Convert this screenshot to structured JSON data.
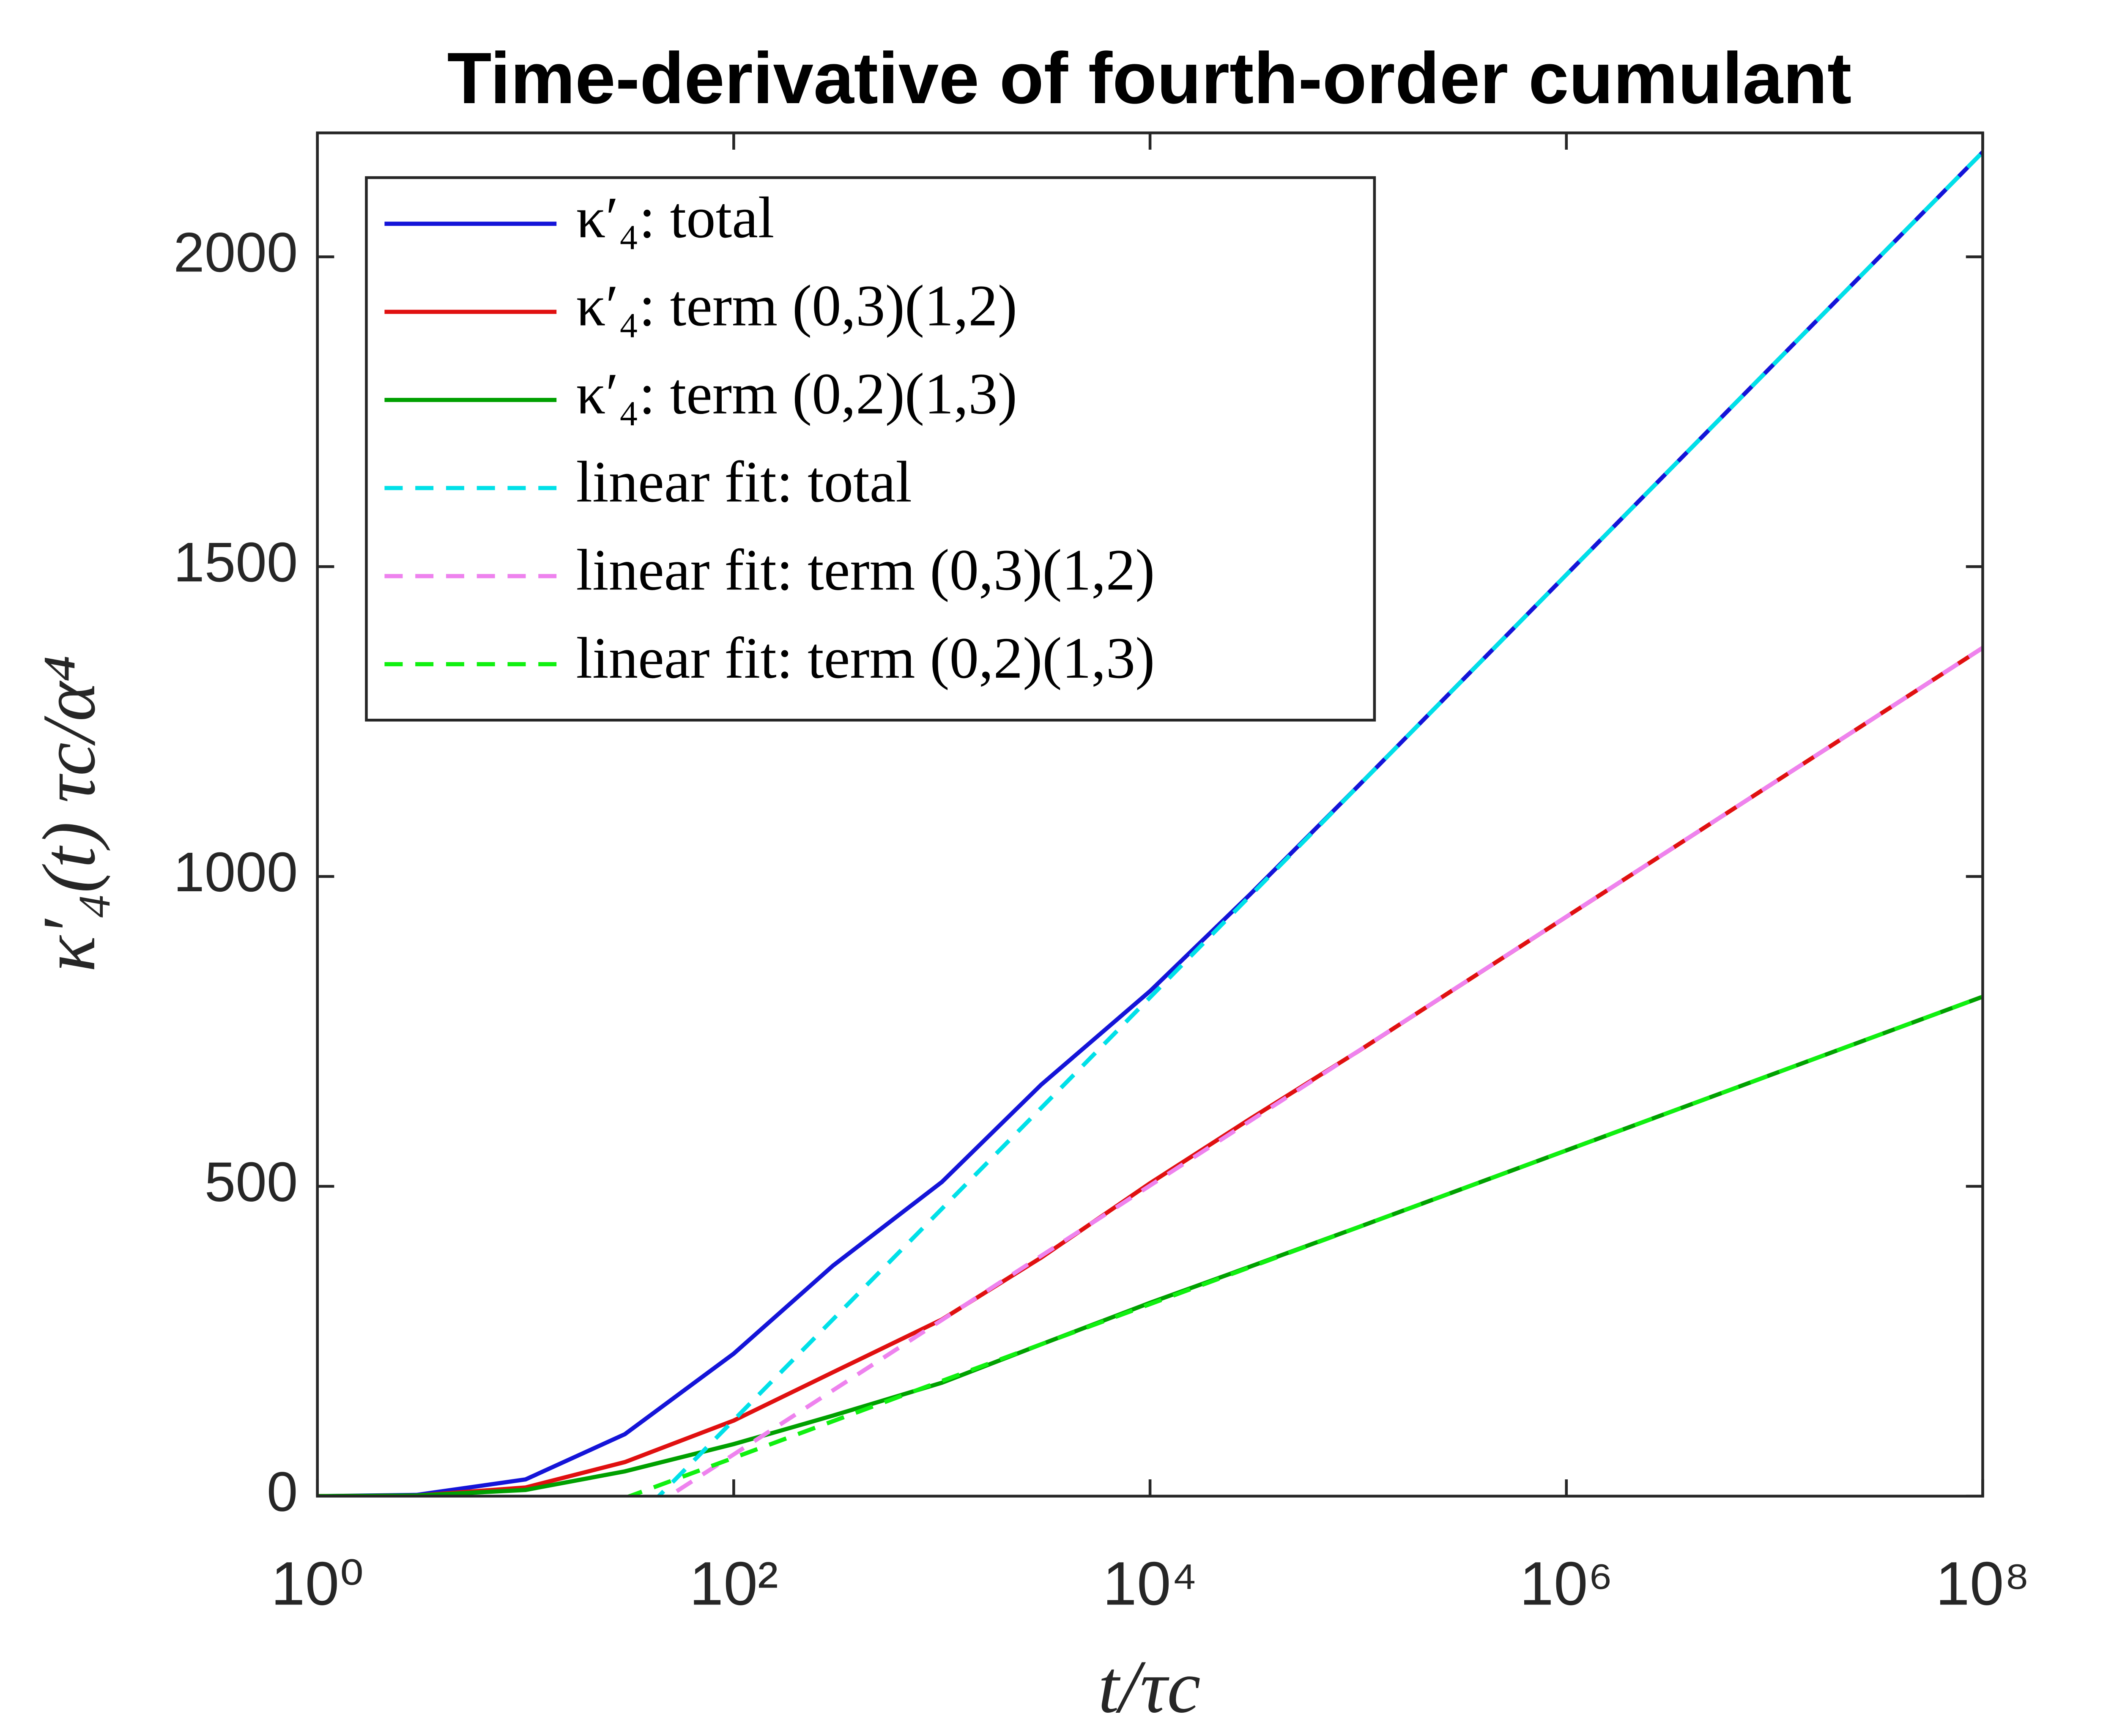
{
  "chart_data": {
    "type": "line",
    "title": "Time-derivative of fourth-order cumulant",
    "xlabel": "t/τc",
    "ylabel": "κ′₄(t) τc/α⁴",
    "xscale": "log",
    "xlim": [
      1,
      100000000
    ],
    "ylim": [
      0,
      2200
    ],
    "xticks": [
      {
        "value": 1,
        "label": "10⁰"
      },
      {
        "value": 100,
        "label": "10²"
      },
      {
        "value": 10000,
        "label": "10⁴"
      },
      {
        "value": 1000000,
        "label": "10⁶"
      },
      {
        "value": 100000000,
        "label": "10⁸"
      }
    ],
    "yticks": [
      0,
      500,
      1000,
      1500,
      2000
    ],
    "legend": "upper left",
    "series": [
      {
        "name": "κ′₄: total",
        "color": "#1414d8",
        "dash": false,
        "x": [
          1,
          3,
          10,
          30,
          100,
          300,
          1000,
          3000,
          10000,
          30000,
          100000,
          1000000,
          10000000,
          100000000
        ],
        "values": [
          0,
          2,
          27,
          100,
          230,
          372,
          507,
          664,
          815,
          970,
          1146,
          1487,
          1828,
          2169
        ]
      },
      {
        "name": "κ′₄: term (0,3)(1,2)",
        "color": "#e01010",
        "dash": false,
        "x": [
          1,
          3,
          10,
          30,
          100,
          300,
          1000,
          3000,
          10000,
          30000,
          100000,
          1000000,
          10000000,
          100000000
        ],
        "values": [
          0,
          1,
          14,
          55,
          122,
          200,
          285,
          385,
          505,
          608,
          718,
          935,
          1152,
          1369
        ]
      },
      {
        "name": "κ′₄: term (0,2)(1,3)",
        "color": "#00a000",
        "dash": false,
        "x": [
          1,
          3,
          10,
          30,
          100,
          300,
          1000,
          3000,
          10000,
          30000,
          100000,
          1000000,
          10000000,
          100000000
        ],
        "values": [
          0,
          1,
          10,
          40,
          84,
          130,
          183,
          245,
          312,
          370,
          434,
          558,
          682,
          806
        ]
      },
      {
        "name": "linear fit: total",
        "color": "#00e0e8",
        "dash": true,
        "x": [
          40,
          100000000
        ],
        "values": [
          -13,
          2169
        ]
      },
      {
        "name": "linear fit: term (0,3)(1,2)",
        "color": "#ee82ee",
        "dash": true,
        "x": [
          40,
          100000000
        ],
        "values": [
          -19,
          1369
        ]
      },
      {
        "name": "linear fit: term (0,2)(1,3)",
        "color": "#10f010",
        "dash": true,
        "x": [
          30,
          100000000
        ],
        "values": [
          -3,
          806
        ]
      }
    ]
  }
}
